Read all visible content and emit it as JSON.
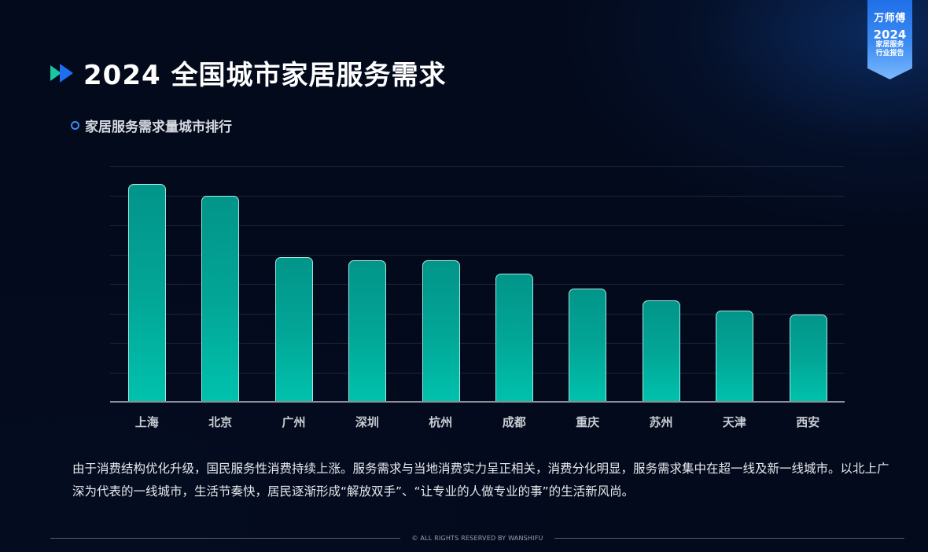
{
  "badge": {
    "brand": "万师傅",
    "year": "2024",
    "line1": "家居服务",
    "line2": "行业报告"
  },
  "header": {
    "title": "2024 全国城市家居服务需求",
    "subtitle": "家居服务需求量城市排行"
  },
  "colors": {
    "background": "#040b1d",
    "bar_top": "#02958a",
    "bar_bottom": "#00c2ad",
    "accent_blue": "#1d6ff0",
    "accent_teal": "#17c7a4"
  },
  "chart_data": {
    "type": "bar",
    "title": "家居服务需求量城市排行",
    "xlabel": "",
    "ylabel": "",
    "categories": [
      "上海",
      "北京",
      "广州",
      "深圳",
      "杭州",
      "成都",
      "重庆",
      "苏州",
      "天津",
      "西安"
    ],
    "values": [
      7.4,
      7.0,
      4.9,
      4.8,
      4.8,
      4.35,
      3.85,
      3.45,
      3.1,
      2.95
    ],
    "ylim": [
      0,
      8
    ],
    "grid": true,
    "y_tick_labels_visible": false,
    "gridline_count": 8,
    "legend": null,
    "note": "No y-axis tick labels shown; values are relative units read from 8 evenly spaced gridlines"
  },
  "description": "由于消费结构优化升级，国民服务性消费持续上涨。服务需求与当地消费实力呈正相关，消费分化明显，服务需求集中在超一线及新一线城市。以北上广深为代表的一线城市，生活节奏快，居民逐渐形成“解放双手”、“让专业的人做专业的事”的生活新风尚。",
  "footer": {
    "copyright": "© ALL RIGHTS RESERVED BY WANSHIFU"
  }
}
